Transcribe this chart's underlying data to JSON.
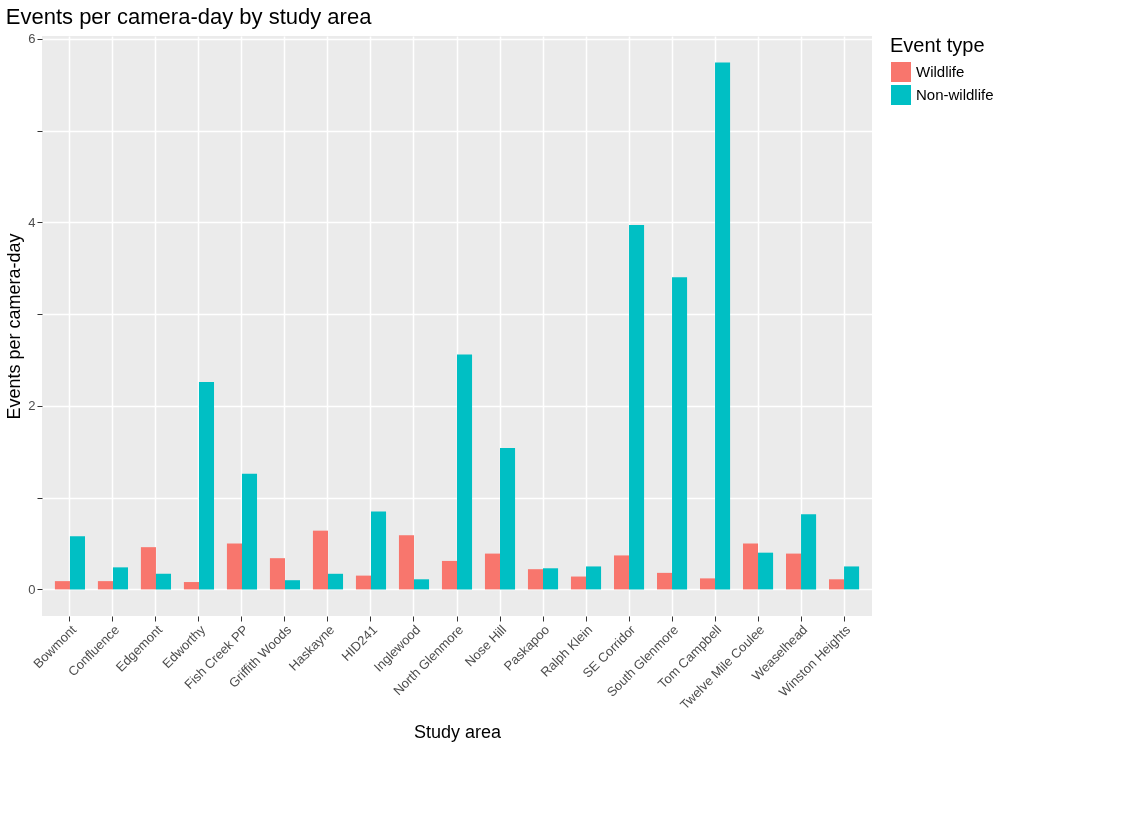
{
  "chart_data": {
    "type": "bar",
    "title": "Events per camera-day by study area",
    "xlabel": "Study area",
    "ylabel": "Events per camera-day",
    "legend_title": "Event type",
    "categories": [
      "Bowmont",
      "Confluence",
      "Edgemont",
      "Edworthy",
      "Fish Creek PP",
      "Griffith Woods",
      "Haskayne",
      "HID241",
      "Inglewood",
      "North Glenmore",
      "Nose Hill",
      "Paskapoo",
      "Ralph Klein",
      "SE Corridor",
      "South Glenmore",
      "Tom Campbell",
      "Twelve Mile Coulee",
      "Weaselhead",
      "Winston Heights"
    ],
    "series": [
      {
        "name": "Wildlife",
        "color": "#f8766d",
        "values": [
          0.09,
          0.09,
          0.46,
          0.08,
          0.5,
          0.34,
          0.64,
          0.15,
          0.59,
          0.31,
          0.39,
          0.22,
          0.14,
          0.37,
          0.18,
          0.12,
          0.5,
          0.39,
          0.11
        ]
      },
      {
        "name": "Non-wildlife",
        "color": "#00bfc4",
        "values": [
          0.58,
          0.24,
          0.17,
          2.26,
          1.26,
          0.1,
          0.17,
          0.85,
          0.11,
          2.56,
          1.54,
          0.23,
          0.25,
          3.97,
          3.4,
          5.74,
          0.4,
          0.82,
          0.25
        ]
      }
    ],
    "ylim": [
      -0.29,
      6.03
    ],
    "yticks": [
      0,
      {
        "value": 1,
        "label": null
      },
      2,
      {
        "value": 3,
        "label": null
      },
      4,
      {
        "value": 5,
        "label": null
      },
      6
    ],
    "grid": true,
    "legend": "right"
  }
}
